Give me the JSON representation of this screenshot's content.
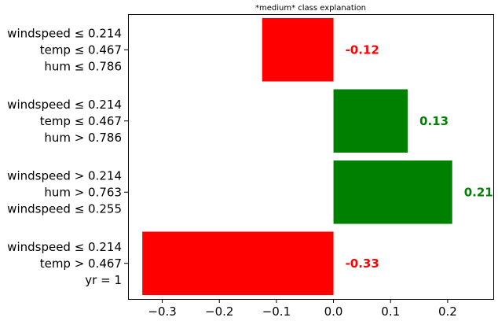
{
  "chart_data": {
    "type": "bar",
    "orientation": "horizontal",
    "title": "*medium* class explanation",
    "categories": [
      [
        "windspeed ≤ 0.214",
        "temp ≤ 0.467",
        "hum ≤ 0.786"
      ],
      [
        "windspeed ≤ 0.214",
        "temp ≤ 0.467",
        "hum > 0.786"
      ],
      [
        "windspeed > 0.214",
        "hum > 0.763",
        "windspeed ≤ 0.255"
      ],
      [
        "windspeed ≤ 0.214",
        "temp > 0.467",
        "yr = 1"
      ]
    ],
    "values": [
      -0.125,
      0.13,
      0.208,
      -0.335
    ],
    "data_labels": [
      "-0.12",
      "0.13",
      "0.21",
      "-0.33"
    ],
    "xlim": [
      -0.36,
      0.28
    ],
    "xticks": [
      -0.3,
      -0.2,
      -0.1,
      0.0,
      0.1,
      0.2
    ],
    "xtick_labels": [
      "−0.3",
      "−0.2",
      "−0.1",
      "0.0",
      "0.1",
      "0.2"
    ],
    "xlabel": "",
    "ylabel": "",
    "grid": false,
    "colors": {
      "negative": "#ff0000",
      "positive": "#008000"
    }
  }
}
